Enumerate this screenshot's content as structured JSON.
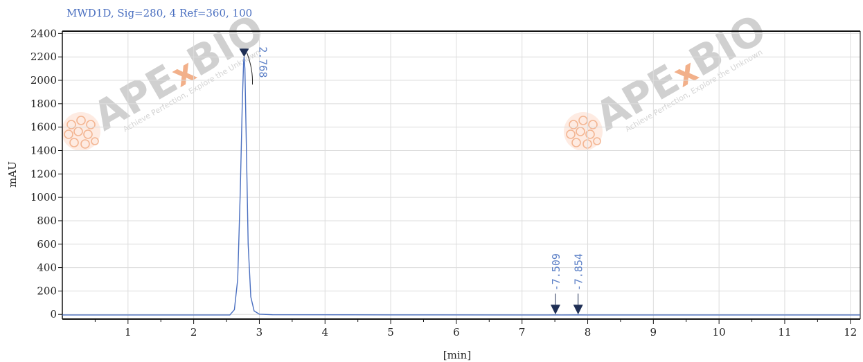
{
  "header": {
    "signal_text": "MWD1D, Sig=280, 4   Ref=360, 100"
  },
  "watermark": {
    "brand_a": "APE",
    "brand_x": "x",
    "brand_b": "BIO",
    "tagline": "Achieve Perfection, Explore the Unknown",
    "colors": {
      "gray": "#cfcfcf",
      "accent": "#f2b08a"
    }
  },
  "colors": {
    "trace": "#4a6fc0",
    "axis": "#111111",
    "grid": "#dcdcdc",
    "label": "#5b7fc6"
  },
  "chart_data": {
    "type": "line",
    "title": "MWD1D, Sig=280, 4   Ref=360, 100",
    "xlabel": "[min]",
    "ylabel": "mAU",
    "xlim": [
      0,
      12.15
    ],
    "ylim": [
      -40,
      2420
    ],
    "x_ticks": [
      1,
      2,
      3,
      4,
      5,
      6,
      7,
      8,
      9,
      10,
      11,
      12
    ],
    "y_ticks": [
      0,
      200,
      400,
      600,
      800,
      1000,
      1200,
      1400,
      1600,
      1800,
      2000,
      2200,
      2400
    ],
    "grid": true,
    "series": [
      {
        "x": [
          0.0,
          2.55,
          2.62,
          2.67,
          2.71,
          2.74,
          2.76,
          2.768,
          2.78,
          2.8,
          2.83,
          2.87,
          2.92,
          3.0,
          3.2,
          5.0,
          7.4,
          7.509,
          7.6,
          7.854,
          8.0,
          12.15
        ],
        "y": [
          -5,
          -5,
          40,
          300,
          1050,
          1800,
          2150,
          2200,
          2100,
          1500,
          600,
          150,
          30,
          2,
          -3,
          -4,
          -5,
          -4,
          -5,
          -4,
          -5,
          -5
        ]
      }
    ],
    "peaks": [
      {
        "rt": 2.768,
        "label": "2.768",
        "height": 2200
      },
      {
        "rt": 7.509,
        "label": "7.509",
        "height": -4
      },
      {
        "rt": 7.854,
        "label": "7.854",
        "height": -4
      }
    ]
  }
}
